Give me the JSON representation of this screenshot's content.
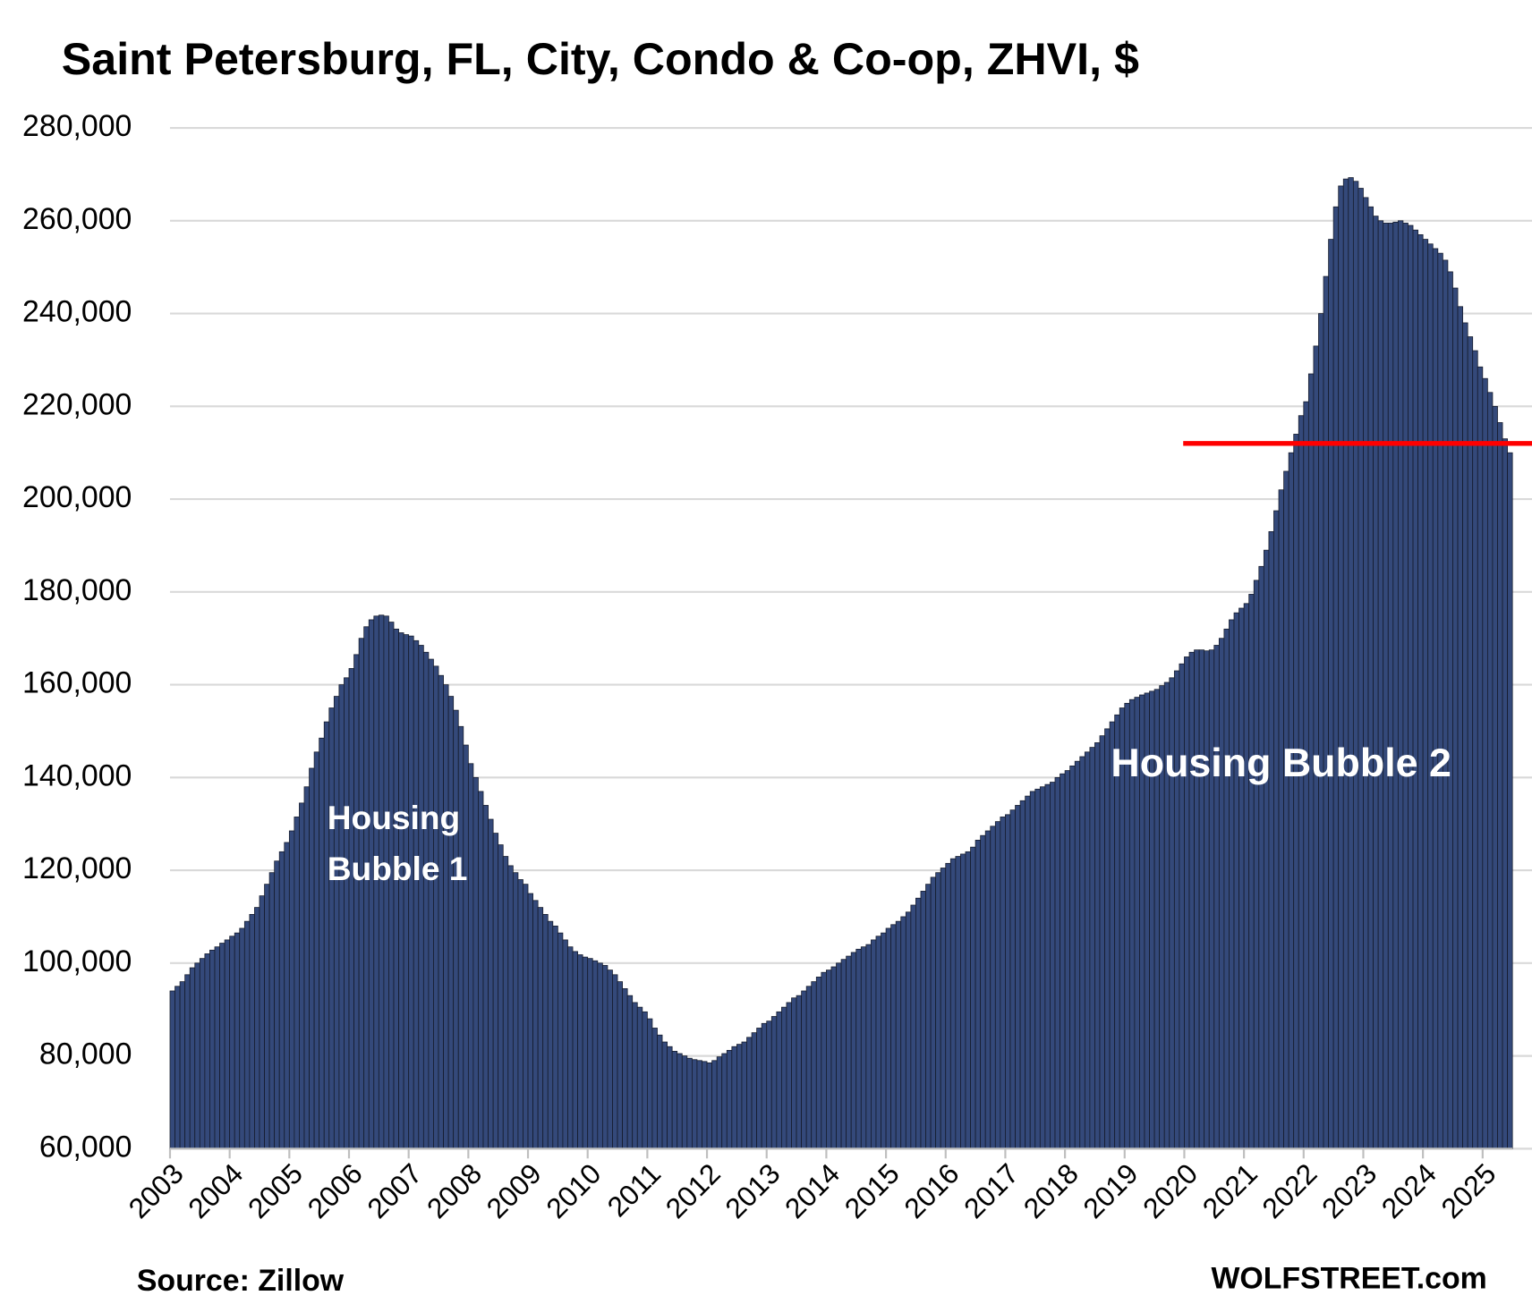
{
  "chart_data": {
    "type": "bar",
    "title": "Saint Petersburg, FL, City, Condo & Co-op, ZHVI, $",
    "source": "Source: Zillow",
    "credit": "WOLFSTREET.com",
    "annotations": [
      {
        "lines": [
          "Housing",
          "Bubble 1"
        ]
      },
      {
        "lines": [
          "Housing Bubble 2"
        ]
      }
    ],
    "color": "#34497a",
    "edge_color": "#141a2a",
    "grid": true,
    "ylim": [
      60000,
      280000
    ],
    "yticks": [
      {
        "value": 60000,
        "label": "60,000"
      },
      {
        "value": 80000,
        "label": "80,000"
      },
      {
        "value": 100000,
        "label": "100,000"
      },
      {
        "value": 120000,
        "label": "120,000"
      },
      {
        "value": 140000,
        "label": "140,000"
      },
      {
        "value": 160000,
        "label": "160,000"
      },
      {
        "value": 180000,
        "label": "180,000"
      },
      {
        "value": 200000,
        "label": "200,000"
      },
      {
        "value": 220000,
        "label": "220,000"
      },
      {
        "value": 240000,
        "label": "240,000"
      },
      {
        "value": 260000,
        "label": "260,000"
      },
      {
        "value": 280000,
        "label": "280,000"
      }
    ],
    "reference_line": {
      "value": 212000,
      "color": "#ff0000"
    },
    "categories": [
      "2003",
      null,
      null,
      null,
      null,
      null,
      null,
      null,
      null,
      null,
      null,
      null,
      "2004",
      null,
      null,
      null,
      null,
      null,
      null,
      null,
      null,
      null,
      null,
      null,
      "2005",
      null,
      null,
      null,
      null,
      null,
      null,
      null,
      null,
      null,
      null,
      null,
      "2006",
      null,
      null,
      null,
      null,
      null,
      null,
      null,
      null,
      null,
      null,
      null,
      "2007",
      null,
      null,
      null,
      null,
      null,
      null,
      null,
      null,
      null,
      null,
      null,
      "2008",
      null,
      null,
      null,
      null,
      null,
      null,
      null,
      null,
      null,
      null,
      null,
      "2009",
      null,
      null,
      null,
      null,
      null,
      null,
      null,
      null,
      null,
      null,
      null,
      "2010",
      null,
      null,
      null,
      null,
      null,
      null,
      null,
      null,
      null,
      null,
      null,
      "2011",
      null,
      null,
      null,
      null,
      null,
      null,
      null,
      null,
      null,
      null,
      null,
      "2012",
      null,
      null,
      null,
      null,
      null,
      null,
      null,
      null,
      null,
      null,
      null,
      "2013",
      null,
      null,
      null,
      null,
      null,
      null,
      null,
      null,
      null,
      null,
      null,
      "2014",
      null,
      null,
      null,
      null,
      null,
      null,
      null,
      null,
      null,
      null,
      null,
      "2015",
      null,
      null,
      null,
      null,
      null,
      null,
      null,
      null,
      null,
      null,
      null,
      "2016",
      null,
      null,
      null,
      null,
      null,
      null,
      null,
      null,
      null,
      null,
      null,
      "2017",
      null,
      null,
      null,
      null,
      null,
      null,
      null,
      null,
      null,
      null,
      null,
      "2018",
      null,
      null,
      null,
      null,
      null,
      null,
      null,
      null,
      null,
      null,
      null,
      "2019",
      null,
      null,
      null,
      null,
      null,
      null,
      null,
      null,
      null,
      null,
      null,
      "2020",
      null,
      null,
      null,
      null,
      null,
      null,
      null,
      null,
      null,
      null,
      null,
      "2021",
      null,
      null,
      null,
      null,
      null,
      null,
      null,
      null,
      null,
      null,
      null,
      "2022",
      null,
      null,
      null,
      null,
      null,
      null,
      null,
      null,
      null,
      null,
      null,
      "2023",
      null,
      null,
      null,
      null,
      null,
      null,
      null,
      null,
      null,
      null,
      null,
      "2024",
      null,
      null,
      null,
      null,
      null,
      null,
      null,
      null,
      null,
      null,
      null,
      "2025",
      null,
      null,
      null,
      null,
      null
    ],
    "values": [
      94000,
      95000,
      96000,
      97500,
      99000,
      100000,
      101000,
      102000,
      102800,
      103500,
      104300,
      105000,
      105800,
      106500,
      107500,
      109000,
      110500,
      112000,
      114500,
      117000,
      119500,
      122000,
      124000,
      126000,
      128500,
      131500,
      134500,
      138000,
      142000,
      145500,
      148500,
      152000,
      155000,
      157500,
      160000,
      161500,
      163500,
      166500,
      170000,
      172500,
      174000,
      174800,
      175000,
      174800,
      173500,
      172000,
      171200,
      170800,
      170500,
      169500,
      168500,
      167000,
      165500,
      164000,
      162000,
      160000,
      157500,
      154500,
      151000,
      147000,
      143000,
      140000,
      137000,
      134000,
      131000,
      128000,
      125500,
      123000,
      121000,
      119500,
      118000,
      117000,
      115000,
      113500,
      112000,
      110500,
      109000,
      108000,
      106500,
      105000,
      103500,
      102500,
      101800,
      101300,
      101000,
      100500,
      100000,
      99500,
      98500,
      97500,
      96000,
      94500,
      93000,
      91500,
      90500,
      89500,
      88000,
      86000,
      84500,
      83000,
      82000,
      81000,
      80500,
      80000,
      79500,
      79200,
      79000,
      78800,
      78500,
      79000,
      79800,
      80500,
      81200,
      82000,
      82500,
      83000,
      84000,
      85000,
      86000,
      87000,
      87500,
      88500,
      89500,
      90500,
      91500,
      92500,
      93000,
      94000,
      95000,
      96000,
      97000,
      98000,
      98500,
      99200,
      100000,
      100800,
      101500,
      102300,
      103000,
      103500,
      104000,
      105000,
      105800,
      106500,
      107500,
      108300,
      109000,
      110000,
      111000,
      112500,
      114000,
      115500,
      117000,
      118500,
      119500,
      120500,
      121500,
      122500,
      123000,
      123500,
      124000,
      125000,
      126500,
      127500,
      128500,
      129500,
      130500,
      131500,
      132000,
      133000,
      134000,
      135000,
      136000,
      137000,
      137500,
      138000,
      138500,
      139000,
      140000,
      140800,
      141500,
      142500,
      143500,
      144500,
      145500,
      146500,
      147500,
      149000,
      150500,
      152000,
      153500,
      155000,
      156000,
      156800,
      157300,
      157800,
      158200,
      158600,
      159000,
      159800,
      160500,
      161500,
      163000,
      164500,
      166000,
      167000,
      167500,
      167500,
      167300,
      167500,
      168500,
      170000,
      172000,
      174000,
      175500,
      176500,
      177500,
      179500,
      182500,
      185500,
      189000,
      193000,
      197500,
      202000,
      206000,
      210000,
      214000,
      218000,
      221000,
      227000,
      233000,
      240000,
      248000,
      256000,
      263000,
      267500,
      269000,
      269300,
      268500,
      267000,
      265000,
      263000,
      261000,
      260000,
      259500,
      259500,
      259700,
      260000,
      259500,
      259000,
      258000,
      257000,
      256000,
      255000,
      254000,
      253000,
      251500,
      249000,
      245500,
      241500,
      238000,
      235000,
      232000,
      228500,
      226000,
      223000,
      220000,
      216500,
      213000,
      210000
    ]
  }
}
